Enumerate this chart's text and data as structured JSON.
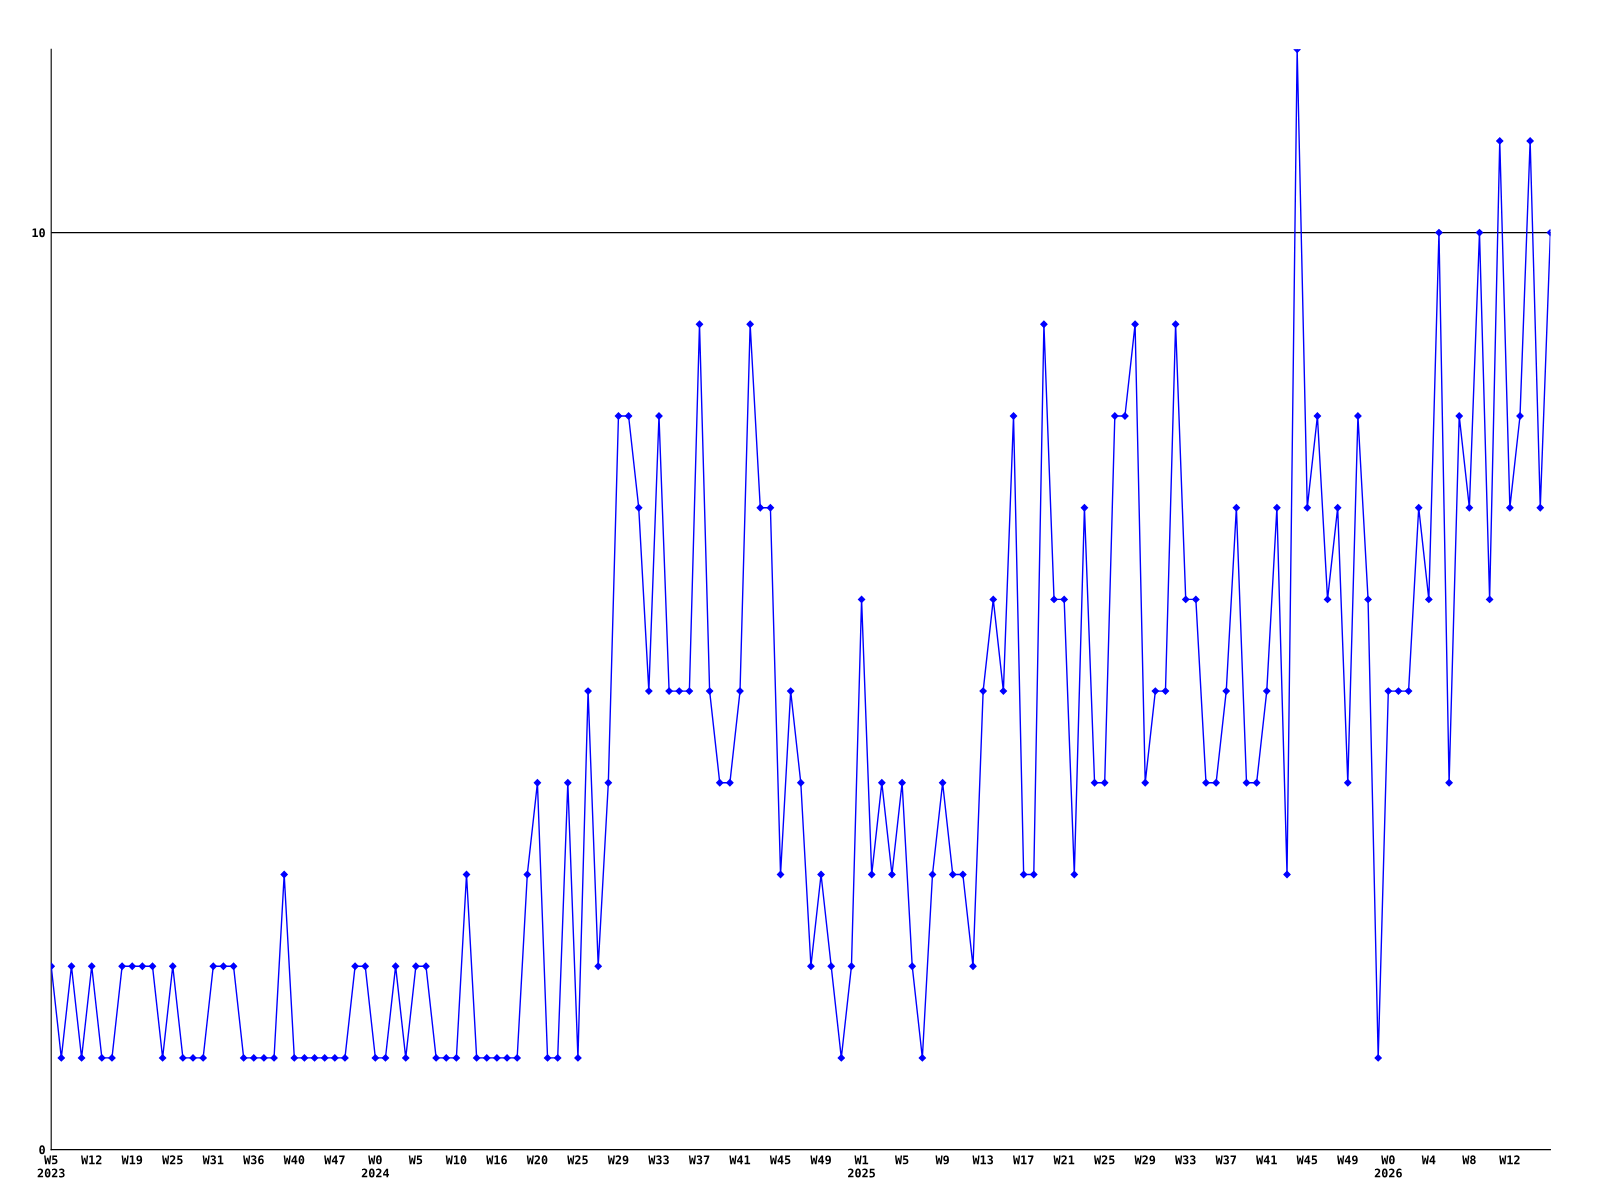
{
  "chart_data": {
    "type": "line",
    "categories": [
      "W5\n2023",
      null,
      null,
      null,
      "W12",
      null,
      null,
      null,
      "W19",
      null,
      null,
      null,
      "W25",
      null,
      null,
      null,
      "W31",
      null,
      null,
      null,
      "W36",
      null,
      null,
      null,
      "W40",
      null,
      null,
      null,
      "W47",
      null,
      null,
      null,
      "W0\n2024",
      null,
      null,
      null,
      "W5",
      null,
      null,
      null,
      "W10",
      null,
      null,
      null,
      "W16",
      null,
      null,
      null,
      "W20",
      null,
      null,
      null,
      "W25",
      null,
      null,
      null,
      "W29",
      null,
      null,
      null,
      "W33",
      null,
      null,
      null,
      "W37",
      null,
      null,
      null,
      "W41",
      null,
      null,
      null,
      "W45",
      null,
      null,
      null,
      "W49",
      null,
      null,
      null,
      "W1\n2025",
      null,
      null,
      null,
      "W5",
      null,
      null,
      null,
      "W9",
      null,
      null,
      null,
      "W13",
      null,
      null,
      null,
      "W17",
      null,
      null,
      null,
      "W21",
      null,
      null,
      null,
      "W25",
      null,
      null,
      null,
      "W29",
      null,
      null,
      null,
      "W33",
      null,
      null,
      null,
      "W37",
      null,
      null,
      null,
      "W41",
      null,
      null,
      null,
      "W45",
      null,
      null,
      null,
      "W49",
      null,
      null,
      null,
      "W0\n2026",
      null,
      null,
      null,
      "W4",
      null,
      null,
      null,
      "W8",
      null,
      null,
      null,
      "W12",
      null,
      null,
      null,
      null
    ],
    "series": [
      {
        "color": "#0000ff",
        "values": [
          2,
          1,
          2,
          1,
          2,
          1,
          1,
          2,
          2,
          2,
          2,
          1,
          2,
          1,
          1,
          1,
          2,
          2,
          2,
          1,
          1,
          1,
          1,
          3,
          1,
          1,
          1,
          1,
          1,
          1,
          2,
          2,
          1,
          1,
          2,
          1,
          2,
          2,
          1,
          1,
          1,
          3,
          1,
          1,
          1,
          1,
          1,
          3,
          4,
          1,
          1,
          4,
          1,
          5,
          2,
          4,
          8,
          8,
          7,
          5,
          8,
          5,
          5,
          5,
          9,
          5,
          4,
          4,
          5,
          9,
          7,
          7,
          3,
          5,
          4,
          2,
          3,
          2,
          1,
          2,
          6,
          3,
          4,
          3,
          4,
          2,
          1,
          3,
          4,
          3,
          3,
          2,
          5,
          6,
          5,
          8,
          3,
          3,
          9,
          6,
          6,
          3,
          7,
          4,
          4,
          8,
          8,
          9,
          4,
          5,
          5,
          9,
          6,
          6,
          4,
          4,
          5,
          7,
          4,
          4,
          5,
          7,
          3,
          12,
          7,
          8,
          6,
          7,
          4,
          8,
          6,
          1,
          5,
          5,
          5,
          7,
          6,
          10,
          4,
          8,
          7,
          10,
          6,
          11,
          7,
          8,
          11,
          7,
          10
        ]
      }
    ],
    "ylim": [
      0,
      12
    ],
    "yticks": [
      0,
      10
    ],
    "grid": "y",
    "marker": "diamond",
    "line_style": "solid"
  }
}
